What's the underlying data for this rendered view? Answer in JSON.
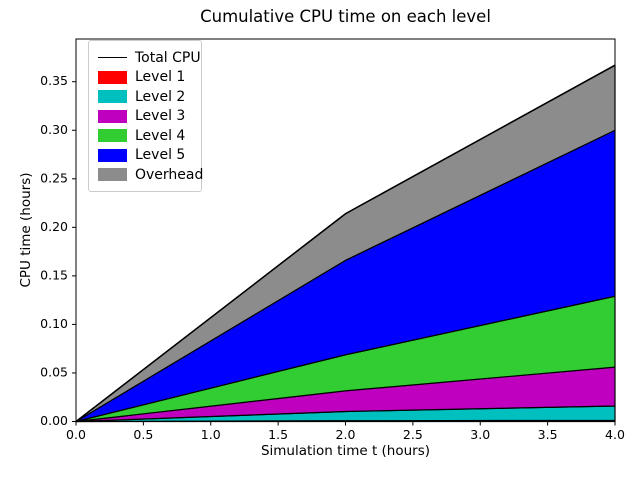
{
  "chart_data": {
    "type": "area",
    "title": "Cumulative CPU time on each level",
    "xlabel": "Simulation time t (hours)",
    "ylabel": "CPU time (hours)",
    "xlim": [
      0,
      4
    ],
    "ylim": [
      0,
      0.394
    ],
    "grid": false,
    "legend_position": "upper left",
    "xticks": {
      "values": [
        0,
        0.5,
        1.0,
        1.5,
        2.0,
        2.5,
        3.0,
        3.5,
        4.0
      ],
      "labels": [
        "0.0",
        "0.5",
        "1.0",
        "1.5",
        "2.0",
        "2.5",
        "3.0",
        "3.5",
        "4.0"
      ]
    },
    "yticks": {
      "values": [
        0,
        0.05,
        0.1,
        0.15,
        0.2,
        0.25,
        0.3,
        0.35
      ],
      "labels": [
        "0.00",
        "0.05",
        "0.10",
        "0.15",
        "0.20",
        "0.25",
        "0.30",
        "0.35"
      ]
    },
    "x": [
      0,
      1.9,
      2.0,
      2.1,
      4.0
    ],
    "series_note": "cum = cumulative CPU time (hours) of stacked upper boundary at each x; slope changes at t=2",
    "series": [
      {
        "name": "level-1",
        "label": "Level 1",
        "color": "#ff0000",
        "cum": [
          0,
          0.00076,
          0.0008,
          0.00082,
          0.0012
        ]
      },
      {
        "name": "level-2",
        "label": "Level 2",
        "color": "#00bfbf",
        "cum": [
          0,
          0.0098,
          0.0103,
          0.0106,
          0.016
        ]
      },
      {
        "name": "level-3",
        "label": "Level 3",
        "color": "#bf00bf",
        "cum": [
          0,
          0.03,
          0.0316,
          0.0328,
          0.056
        ]
      },
      {
        "name": "level-4",
        "label": "Level 4",
        "color": "#32cd32",
        "cum": [
          0,
          0.0653,
          0.0687,
          0.0717,
          0.129
        ]
      },
      {
        "name": "level-5",
        "label": "Level 5",
        "color": "#0000ff",
        "cum": [
          0,
          0.1577,
          0.166,
          0.1727,
          0.3
        ]
      },
      {
        "name": "overhead",
        "label": "Overhead",
        "color": "#8c8c8c",
        "cum": [
          0,
          0.2033,
          0.214,
          0.2217,
          0.367
        ]
      }
    ],
    "total_line": {
      "label": "Total CPU",
      "color": "#000000"
    },
    "edge_color": "#000000"
  }
}
